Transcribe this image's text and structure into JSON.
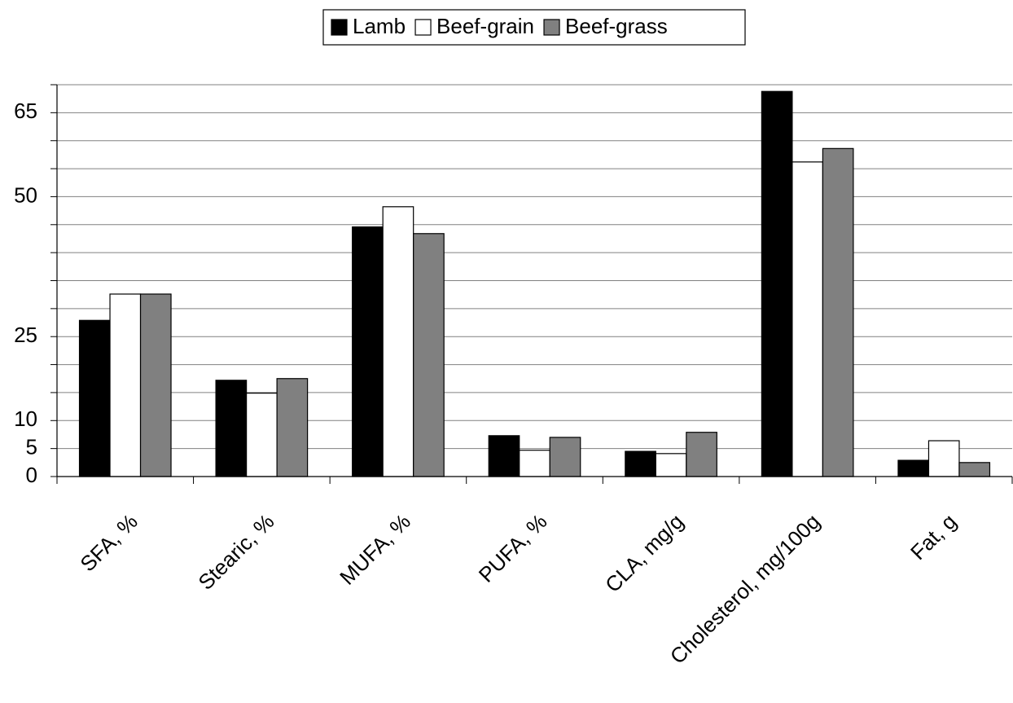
{
  "chart_data": {
    "type": "bar",
    "categories": [
      "SFA, %",
      "Stearic, %",
      "MUFA, %",
      "PUFA, %",
      "CLA, mg/g",
      "Cholesterol, mg/100g",
      "Fat, g"
    ],
    "series": [
      {
        "name": "Lamb",
        "color": "#000000",
        "values": [
          27.9,
          17.2,
          44.6,
          7.3,
          4.5,
          68.8,
          2.9
        ]
      },
      {
        "name": "Beef-grain",
        "color": "#ffffff",
        "values": [
          32.6,
          14.9,
          48.2,
          4.7,
          4.1,
          56.2,
          6.4
        ]
      },
      {
        "name": "Beef-grass",
        "color": "#808080",
        "values": [
          32.6,
          17.5,
          43.4,
          7.0,
          7.9,
          58.6,
          2.5
        ]
      }
    ],
    "ylim": [
      0,
      70
    ],
    "yticks": [
      0,
      5,
      10,
      25,
      50,
      65
    ],
    "minor_yticks": [
      15,
      20,
      30,
      35,
      40,
      45,
      55,
      60,
      70
    ],
    "grid": true,
    "legend": "top"
  }
}
